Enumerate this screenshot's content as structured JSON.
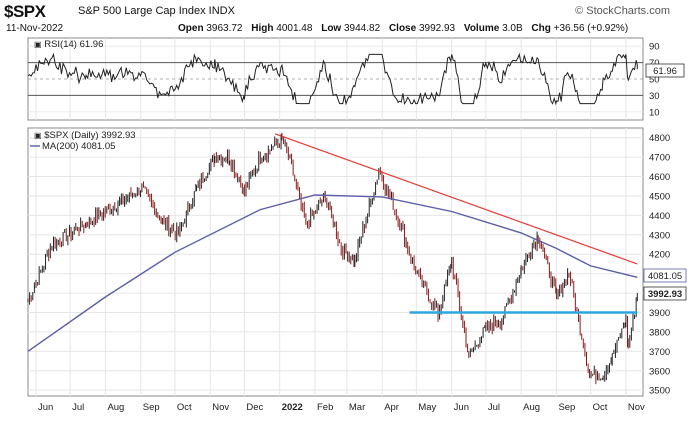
{
  "header": {
    "symbol": "$SPX",
    "name": "S&P 500 Large Cap Index INDX",
    "date": "11-Nov-2022",
    "open_label": "Open",
    "open": "3963.72",
    "high_label": "High",
    "high": "4001.48",
    "low_label": "Low",
    "low": "3944.82",
    "close_label": "Close",
    "close": "3992.93",
    "volume_label": "Volume",
    "volume": "3.0B",
    "chg_label": "Chg",
    "chg": "+36.56 (+0.92%)",
    "source": "© StockCharts.com"
  },
  "rsi_panel": {
    "legend": "RSI(14) 61.96",
    "value_box": "61.96",
    "ticks": [
      "90",
      "70",
      "50",
      "30",
      "10"
    ]
  },
  "price_panel": {
    "legend_price": "$SPX (Daily) 3992.93",
    "legend_ma": "MA(200) 4081.05",
    "ma_box": "4081.05",
    "price_box": "3992.93",
    "ticks": [
      "4800",
      "4700",
      "4600",
      "4500",
      "4400",
      "4300",
      "4200",
      "4100",
      "4000",
      "3900",
      "3800",
      "3700",
      "3600",
      "3500"
    ],
    "months": [
      "Jun",
      "Jul",
      "Aug",
      "Sep",
      "Oct",
      "Nov",
      "Dec",
      "2022",
      "Feb",
      "Mar",
      "Apr",
      "May",
      "Jun",
      "Jul",
      "Aug",
      "Sep",
      "Oct",
      "Nov"
    ]
  },
  "colors": {
    "price_bar": "#8b1a1a",
    "ma": "#5b5ea6",
    "trendline": "#e53935",
    "support": "#2aa7e0",
    "grid": "#e6e6e6",
    "rsi": "#222222"
  },
  "chart_data": [
    {
      "type": "line",
      "series": [
        {
          "name": "RSI(14)",
          "last": 61.96
        }
      ],
      "ylim": [
        0,
        100
      ],
      "levels": [
        70,
        30
      ],
      "grid": true
    },
    {
      "type": "line",
      "x_start": "2021-06",
      "x_end": "2022-11-11",
      "ylim": [
        3470,
        4850
      ],
      "grid": true,
      "series": [
        {
          "name": "$SPX (Daily)",
          "style": "ohlc-bars",
          "points": [
            [
              "2021-05-25",
              3960
            ],
            [
              "2021-06-15",
              4250
            ],
            [
              "2021-07-15",
              4360
            ],
            [
              "2021-08-15",
              4470
            ],
            [
              "2021-09-02",
              4540
            ],
            [
              "2021-09-20",
              4370
            ],
            [
              "2021-10-04",
              4300
            ],
            [
              "2021-10-20",
              4540
            ],
            [
              "2021-11-05",
              4700
            ],
            [
              "2021-11-18",
              4700
            ],
            [
              "2021-12-01",
              4520
            ],
            [
              "2021-12-15",
              4700
            ],
            [
              "2022-01-03",
              4790
            ],
            [
              "2022-01-10",
              4680
            ],
            [
              "2022-01-24",
              4350
            ],
            [
              "2022-02-10",
              4500
            ],
            [
              "2022-02-24",
              4230
            ],
            [
              "2022-03-08",
              4170
            ],
            [
              "2022-03-29",
              4630
            ],
            [
              "2022-04-15",
              4390
            ],
            [
              "2022-04-29",
              4130
            ],
            [
              "2022-05-20",
              3890
            ],
            [
              "2022-06-01",
              4160
            ],
            [
              "2022-06-16",
              3670
            ],
            [
              "2022-07-01",
              3820
            ],
            [
              "2022-07-15",
              3860
            ],
            [
              "2022-08-01",
              4120
            ],
            [
              "2022-08-16",
              4300
            ],
            [
              "2022-09-01",
              3980
            ],
            [
              "2022-09-12",
              4110
            ],
            [
              "2022-09-30",
              3580
            ],
            [
              "2022-10-12",
              3580
            ],
            [
              "2022-10-20",
              3670
            ],
            [
              "2022-11-01",
              3860
            ],
            [
              "2022-11-03",
              3720
            ],
            [
              "2022-11-11",
              3993
            ]
          ]
        },
        {
          "name": "MA(200)",
          "last": 4081.05,
          "points": [
            [
              "2021-05-25",
              3700
            ],
            [
              "2021-08-01",
              3980
            ],
            [
              "2021-10-01",
              4210
            ],
            [
              "2021-12-15",
              4430
            ],
            [
              "2022-02-01",
              4505
            ],
            [
              "2022-04-01",
              4495
            ],
            [
              "2022-06-01",
              4420
            ],
            [
              "2022-08-01",
              4310
            ],
            [
              "2022-09-01",
              4230
            ],
            [
              "2022-10-01",
              4140
            ],
            [
              "2022-11-11",
              4081
            ]
          ]
        }
      ],
      "annotations": [
        {
          "type": "trendline",
          "from": [
            "2021-12-28",
            4820
          ],
          "to": [
            "2022-11-11",
            4150
          ]
        },
        {
          "type": "horizontal",
          "value": 3900,
          "from": "2022-04-25",
          "to": "2022-11-11"
        }
      ]
    }
  ]
}
